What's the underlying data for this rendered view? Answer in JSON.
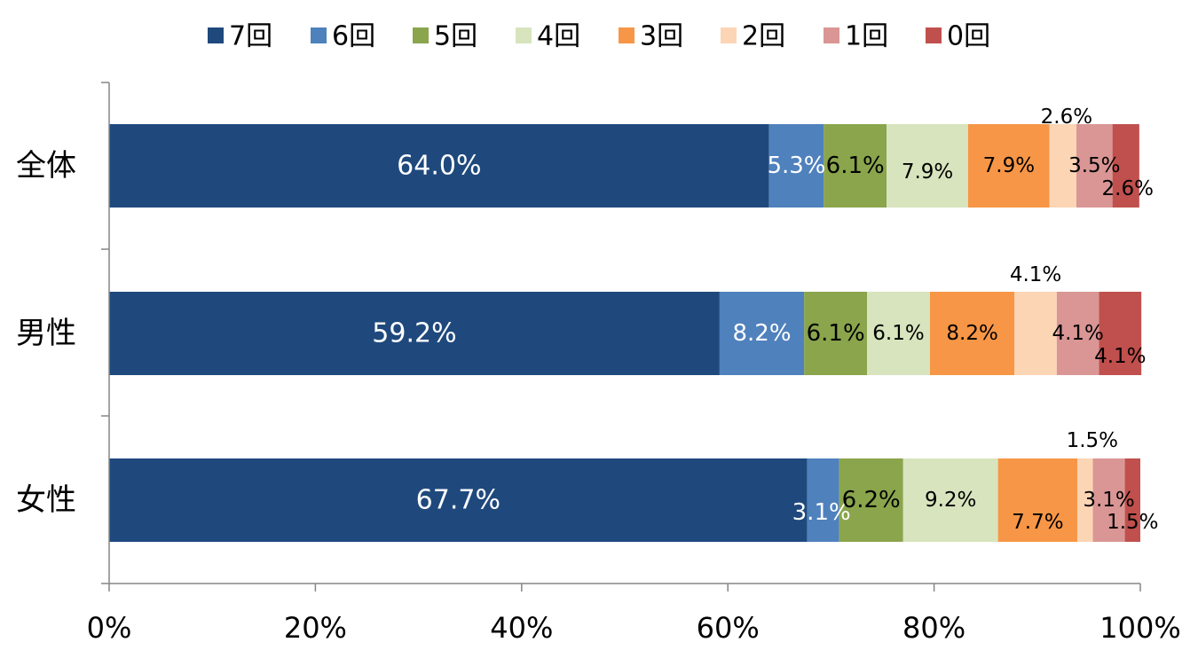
{
  "chart_data": {
    "type": "bar",
    "orientation": "horizontal",
    "stacked": "percent",
    "categories": [
      "全体",
      "男性",
      "女性"
    ],
    "series": [
      {
        "name": "7回",
        "color": "#1f497d",
        "values": [
          64.0,
          59.2,
          67.7
        ],
        "labels": [
          "64.0%",
          "59.2%",
          "67.7%"
        ]
      },
      {
        "name": "6回",
        "color": "#4f81bd",
        "values": [
          5.3,
          8.2,
          3.1
        ],
        "labels": [
          "5.3%",
          "8.2%",
          "3.1%"
        ]
      },
      {
        "name": "5回",
        "color": "#8aa54c",
        "values": [
          6.1,
          6.1,
          6.2
        ],
        "labels": [
          "6.1%",
          "6.1%",
          "6.2%"
        ]
      },
      {
        "name": "4回",
        "color": "#d7e4bd",
        "values": [
          7.9,
          6.1,
          9.2
        ],
        "labels": [
          "7.9%",
          "6.1%",
          "9.2%"
        ]
      },
      {
        "name": "3回",
        "color": "#f79646",
        "values": [
          7.9,
          8.2,
          7.7
        ],
        "labels": [
          "7.9%",
          "8.2%",
          "7.7%"
        ]
      },
      {
        "name": "2回",
        "color": "#fcd5b5",
        "values": [
          2.6,
          4.1,
          1.5
        ],
        "labels": [
          "2.6%",
          "4.1%",
          "1.5%"
        ]
      },
      {
        "name": "1回",
        "color": "#d99694",
        "values": [
          3.5,
          4.1,
          3.1
        ],
        "labels": [
          "3.5%",
          "4.1%",
          "3.1%"
        ]
      },
      {
        "name": "0回",
        "color": "#c0504d",
        "values": [
          2.6,
          4.1,
          1.5
        ],
        "labels": [
          "2.6%",
          "4.1%",
          "1.5%"
        ]
      }
    ],
    "x_ticks": [
      "0%",
      "20%",
      "40%",
      "60%",
      "80%",
      "100%"
    ],
    "xlim": [
      0,
      100
    ],
    "legend": "top",
    "grid": false
  }
}
